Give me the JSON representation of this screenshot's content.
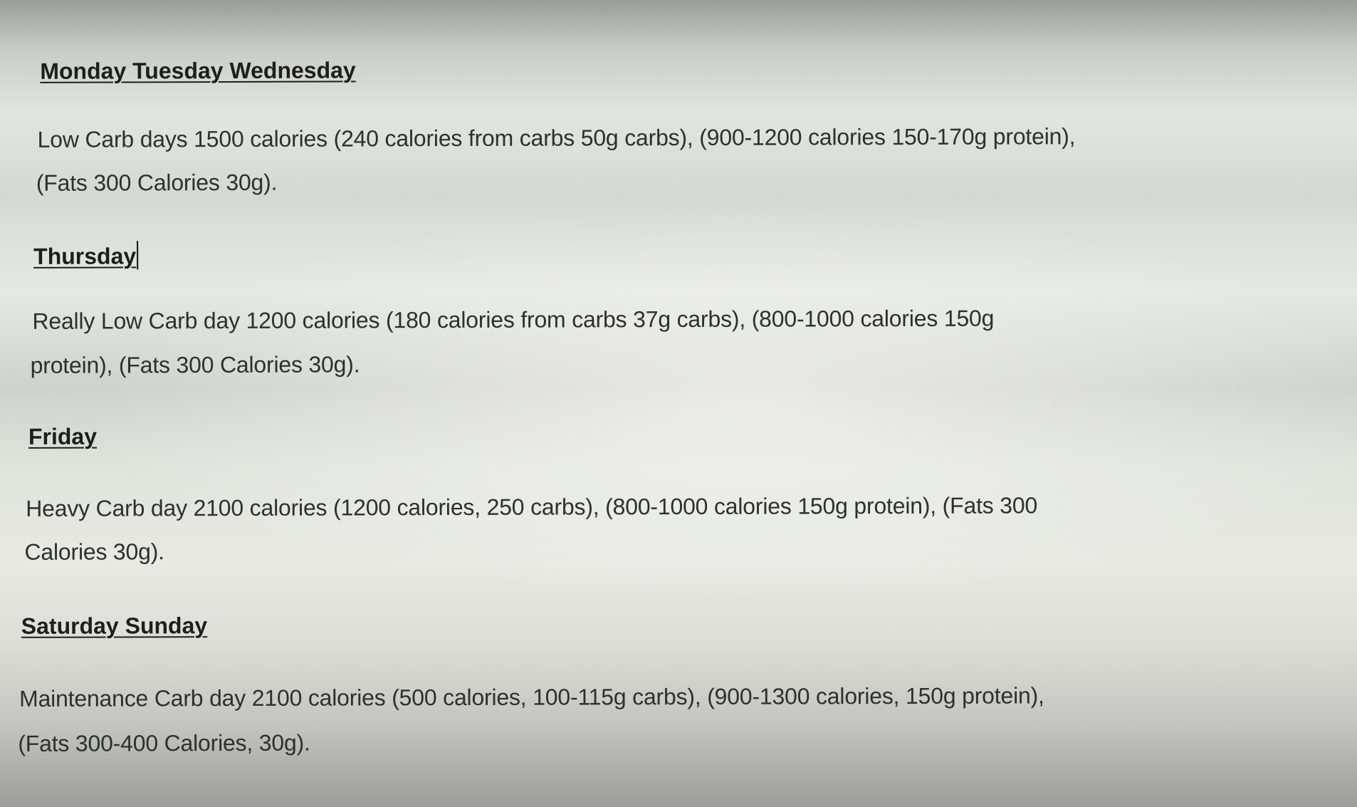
{
  "sections": [
    {
      "heading": "Monday Tuesday Wednesday",
      "lines": [
        "Low Carb days   1500 calories (240 calories from carbs 50g carbs),  (900-1200 calories 150-170g protein),",
        "(Fats  300 Calories 30g)."
      ]
    },
    {
      "heading": "Thursday",
      "lines": [
        "Really Low Carb day   1200 calories (180 calories from carbs 37g carbs),  (800-1000 calories 150g",
        "protein),  (Fats  300 Calories 30g)."
      ]
    },
    {
      "heading": "Friday",
      "lines": [
        "Heavy Carb day   2100 calories (1200 calories,  250 carbs),  (800-1000 calories 150g protein),  (Fats  300",
        "Calories 30g)."
      ]
    },
    {
      "heading": "Saturday Sunday",
      "lines": [
        "Maintenance  Carb day   2100 calories (500 calories,  100-115g carbs),  (900-1300 calories, 150g protein),",
        "(Fats  300-400 Calories, 30g)."
      ]
    }
  ]
}
